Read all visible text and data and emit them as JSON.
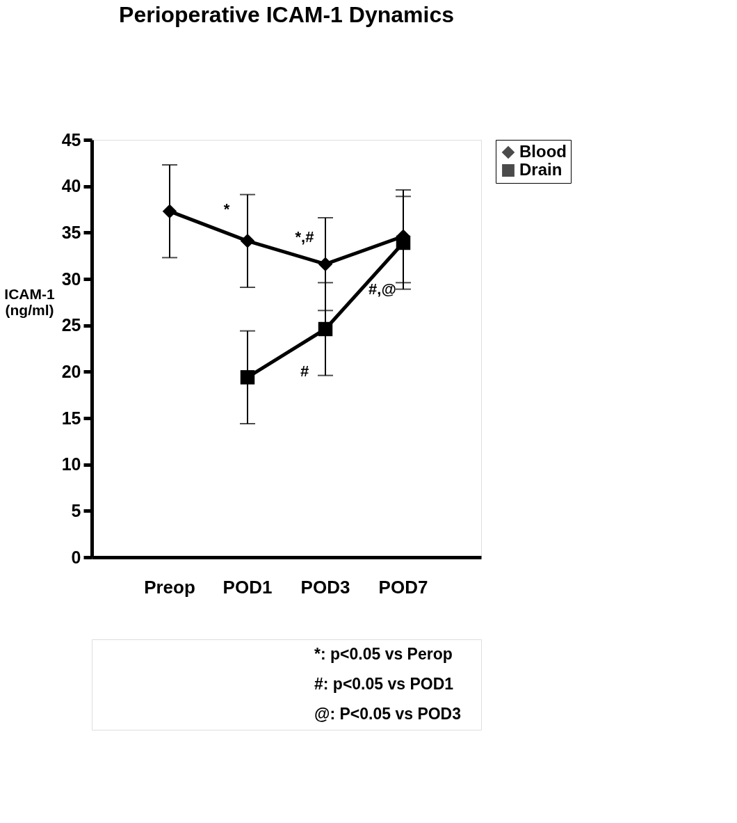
{
  "chart_data": {
    "type": "line",
    "title": "Perioperative ICAM-1 Dynamics",
    "ylabel": "ICAM-1 (ng/ml)",
    "categories": [
      "Preop",
      "POD1",
      "POD3",
      "POD7"
    ],
    "series": [
      {
        "name": "Blood",
        "color": "#000000",
        "marker": "diamond",
        "values": [
          37.3,
          34.1,
          31.6,
          34.6
        ],
        "errors": [
          5,
          5,
          5,
          5
        ]
      },
      {
        "name": "Drain",
        "color": "#000000",
        "marker": "square",
        "values": [
          null,
          19.4,
          24.6,
          33.9
        ],
        "errors": [
          null,
          5,
          5,
          5
        ]
      }
    ],
    "ylim": [
      0,
      45
    ],
    "yticks": [
      0,
      5,
      10,
      15,
      20,
      25,
      30,
      35,
      40,
      45
    ],
    "grid": false,
    "legend": "top right",
    "line_style": "solid",
    "annotations": [
      {
        "text": "*",
        "x": "POD1",
        "y": 37.5
      },
      {
        "text": "*,#",
        "x": "POD3",
        "y": 34.5
      },
      {
        "text": "#",
        "x": "POD3",
        "y": 20
      },
      {
        "text": "#,@",
        "x": "POD7",
        "y": 28.9
      },
      "*: p<0.05 vs Perop",
      "#: p<0.05 vs POD1",
      "@: P<0.05 vs POD3"
    ]
  }
}
